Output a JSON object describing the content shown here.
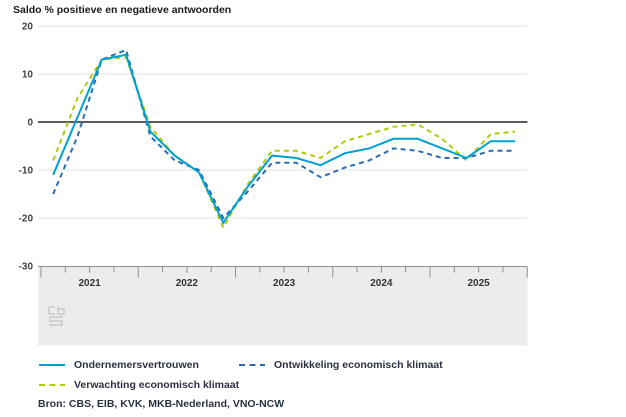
{
  "chart_data": {
    "type": "line",
    "title": "Saldo % positieve en negatieve antwoorden",
    "x": [
      "2021 Q1",
      "2021 Q2",
      "2021 Q3",
      "2021 Q4",
      "2022 Q1",
      "2022 Q2",
      "2022 Q3",
      "2022 Q4",
      "2023 Q1",
      "2023 Q2",
      "2023 Q3",
      "2023 Q4",
      "2024 Q1",
      "2024 Q2",
      "2024 Q3",
      "2024 Q4",
      "2025 Q1",
      "2025 Q2",
      "2025 Q3",
      "2025 Q4"
    ],
    "x_year_labels": [
      "2021",
      "2022",
      "2023",
      "2024",
      "2025"
    ],
    "ylim": [
      -30,
      20
    ],
    "yticks": [
      20,
      10,
      0,
      -10,
      -20,
      -30
    ],
    "grid": true,
    "legend_position": "bottom",
    "series": [
      {
        "name": "Ondernemersvertrouwen",
        "line_style": "solid",
        "color": "#00a1cd",
        "values": [
          -11,
          1,
          13,
          14,
          -2,
          -7,
          -10.5,
          -21,
          -13.5,
          -7,
          -7.5,
          -9,
          -6.5,
          -5.5,
          -3.5,
          -3.5,
          -5.5,
          -7.5,
          -4,
          -4
        ]
      },
      {
        "name": "Ontwikkeling economisch klimaat",
        "line_style": "dashed",
        "color": "#2b6cb3",
        "values": [
          -15,
          -3,
          13,
          15,
          -3,
          -8,
          -10,
          -20,
          -14.5,
          -8.5,
          -8.5,
          -11.5,
          -9.5,
          -8,
          -5.5,
          -6,
          -7.5,
          -7.5,
          -6,
          -6
        ]
      },
      {
        "name": "Verwachting economisch klimaat",
        "line_style": "dashed",
        "color": "#b1ca0c",
        "values": [
          -8,
          5,
          13,
          13.5,
          -1,
          -7,
          -10.5,
          -22,
          -13,
          -6,
          -6,
          -7.5,
          -4,
          -2.5,
          -1,
          -0.5,
          -3.5,
          -8,
          -2.5,
          -2
        ]
      }
    ]
  },
  "source": "Bron: CBS, EIB, KVK, MKB-Nederland, VNO-NCW",
  "watermark_icon": "cbs-logo",
  "colors": {
    "grid": "#e2e2e2",
    "zero_line": "#58595b",
    "axis_band": "#ececec",
    "axis_border": "#8f8f8f",
    "tick": "#8f8f8f",
    "y_label": "#414141",
    "year_label": "#333333",
    "watermark": "#c8c8c8"
  }
}
